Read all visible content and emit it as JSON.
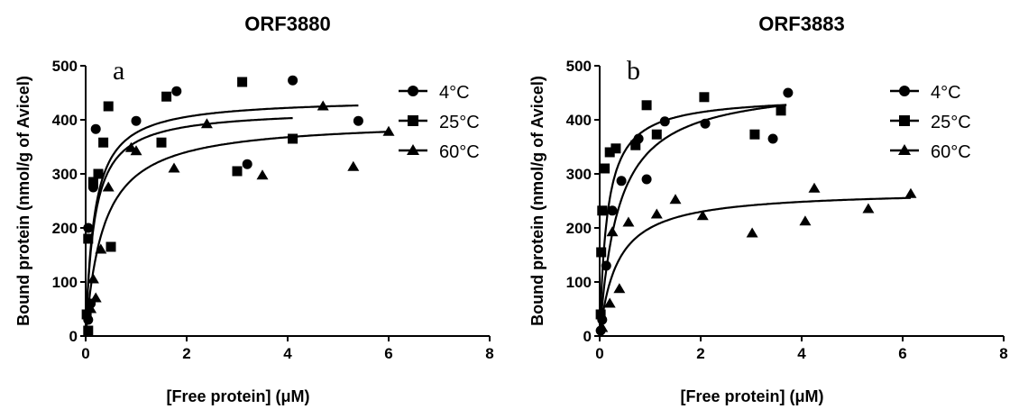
{
  "chart_data": [
    {
      "type": "scatter",
      "panel": "a",
      "title": "ORF3880",
      "xlabel": "[Free protein] (μM)",
      "ylabel": "Bound protein (nmol/g of Avicel)",
      "xlim": [
        0,
        8
      ],
      "ylim": [
        0,
        500
      ],
      "xticks": [
        "0",
        "2",
        "4",
        "6",
        "8"
      ],
      "yticks": [
        "0",
        "100",
        "200",
        "300",
        "400",
        "500"
      ],
      "legend_position": "top-right",
      "series": [
        {
          "name": "4°C",
          "marker": "circle",
          "points": [
            [
              0.2,
              383
            ],
            [
              0.15,
              275
            ],
            [
              1.0,
              398
            ],
            [
              1.8,
              453
            ],
            [
              3.2,
              318
            ],
            [
              4.1,
              473
            ],
            [
              5.4,
              398
            ],
            [
              0.05,
              200
            ],
            [
              0.1,
              60
            ],
            [
              0.05,
              30
            ]
          ],
          "fit": {
            "bmax": 440,
            "kd": 0.17,
            "xmax": 5.4
          }
        },
        {
          "name": "25°C",
          "marker": "square",
          "points": [
            [
              0.45,
              425
            ],
            [
              0.35,
              358
            ],
            [
              0.25,
              300
            ],
            [
              0.15,
              285
            ],
            [
              0.05,
              180
            ],
            [
              0.5,
              165
            ],
            [
              1.6,
              443
            ],
            [
              1.5,
              358
            ],
            [
              3.0,
              305
            ],
            [
              3.1,
              470
            ],
            [
              4.1,
              365
            ],
            [
              0.05,
              10
            ],
            [
              0.02,
              40
            ]
          ],
          "fit": {
            "bmax": 420,
            "kd": 0.17,
            "xmax": 4.1
          }
        },
        {
          "name": "60°C",
          "marker": "triangle",
          "points": [
            [
              0.45,
              275
            ],
            [
              0.9,
              348
            ],
            [
              1.0,
              342
            ],
            [
              1.75,
              310
            ],
            [
              2.4,
              392
            ],
            [
              3.5,
              297
            ],
            [
              4.7,
              425
            ],
            [
              5.3,
              313
            ],
            [
              6.0,
              378
            ],
            [
              0.3,
              160
            ],
            [
              0.15,
              105
            ],
            [
              0.2,
              70
            ],
            [
              0.1,
              50
            ]
          ],
          "fit": {
            "bmax": 400,
            "kd": 0.35,
            "xmax": 6.0
          }
        }
      ]
    },
    {
      "type": "scatter",
      "panel": "b",
      "title": "ORF3883",
      "xlabel": "[Free protein] (μM)",
      "ylabel": "Bound protein (nmol/g of Avicel)",
      "xlim": [
        0,
        8
      ],
      "ylim": [
        0,
        500
      ],
      "xticks": [
        "0",
        "2",
        "4",
        "6",
        "8"
      ],
      "yticks": [
        "0",
        "100",
        "200",
        "300",
        "400",
        "500"
      ],
      "legend_position": "top-right",
      "series": [
        {
          "name": "4°C",
          "marker": "circle",
          "points": [
            [
              3.73,
              450
            ],
            [
              1.29,
              397
            ],
            [
              2.09,
              393
            ],
            [
              0.43,
              287
            ],
            [
              0.93,
              290
            ],
            [
              0.77,
              365
            ],
            [
              3.43,
              365
            ],
            [
              0.25,
              232
            ],
            [
              0.13,
              130
            ],
            [
              0.05,
              30
            ],
            [
              0.02,
              10
            ]
          ],
          "fit": {
            "bmax": 470,
            "kd": 0.37,
            "xmax": 3.6
          }
        },
        {
          "name": "25°C",
          "marker": "square",
          "points": [
            [
              0.93,
              427
            ],
            [
              2.07,
              442
            ],
            [
              3.59,
              417
            ],
            [
              1.13,
              373
            ],
            [
              3.07,
              373
            ],
            [
              0.71,
              353
            ],
            [
              0.32,
              347
            ],
            [
              0.2,
              340
            ],
            [
              0.1,
              310
            ],
            [
              0.05,
              232
            ],
            [
              0.03,
              155
            ],
            [
              0.02,
              40
            ]
          ],
          "fit": {
            "bmax": 445,
            "kd": 0.15,
            "xmax": 3.7
          }
        },
        {
          "name": "60°C",
          "marker": "triangle",
          "points": [
            [
              6.16,
              263
            ],
            [
              4.25,
              273
            ],
            [
              5.32,
              235
            ],
            [
              4.07,
              212
            ],
            [
              3.02,
              190
            ],
            [
              2.04,
              222
            ],
            [
              1.5,
              252
            ],
            [
              1.13,
              225
            ],
            [
              0.57,
              210
            ],
            [
              0.25,
              192
            ],
            [
              0.39,
              87
            ],
            [
              0.2,
              60
            ],
            [
              0.05,
              15
            ]
          ],
          "fit": {
            "bmax": 270,
            "kd": 0.35,
            "xmax": 6.16
          }
        }
      ]
    }
  ]
}
